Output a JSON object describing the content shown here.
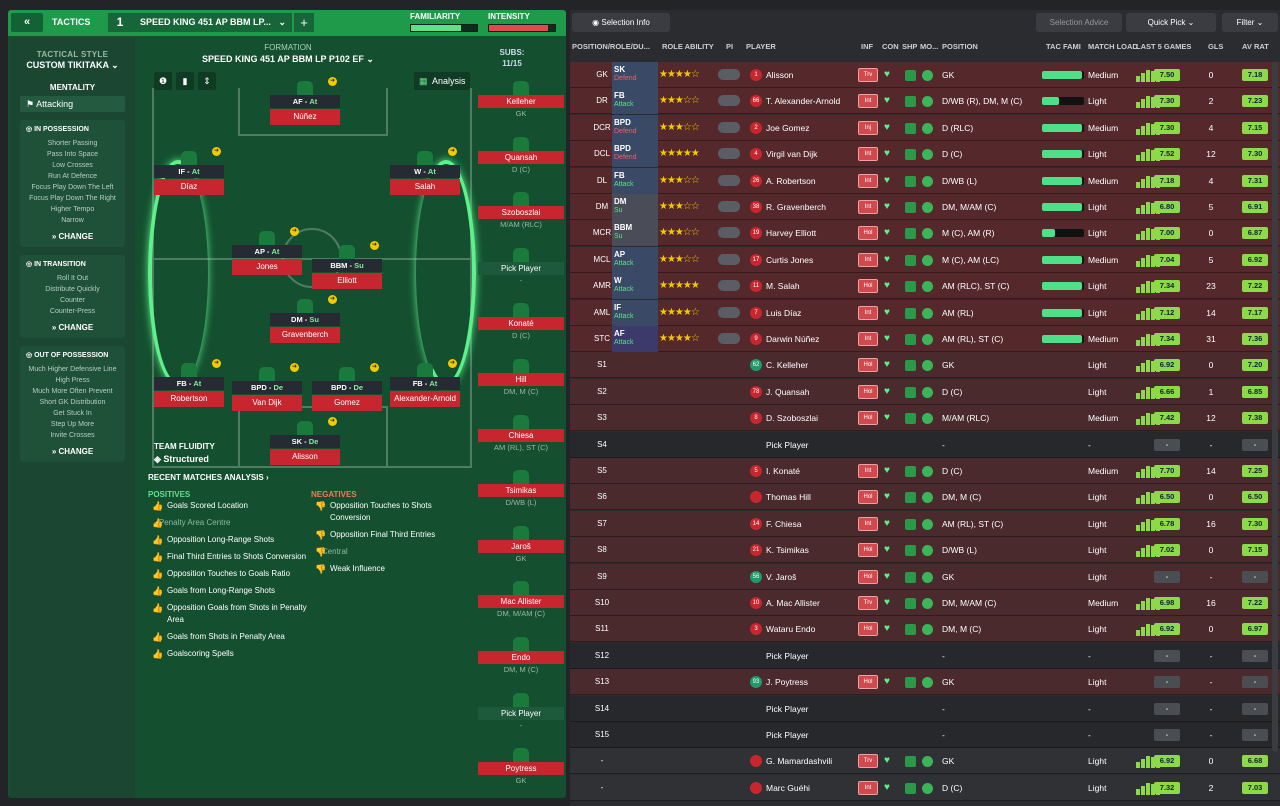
{
  "topbar": {
    "back": "«",
    "tactics": "TACTICS",
    "num": "1",
    "name": "SPEED KING 451 AP BBM LP...",
    "plus": "+",
    "familiarity": "FAMILIARITY",
    "intensity": "INTENSITY",
    "familiarity_level": 0.75,
    "intensity_level": 0.9
  },
  "sidebar": {
    "style_lbl": "TACTICAL STYLE",
    "style": "CUSTOM TIKITAKA",
    "mentality_lbl": "MENTALITY",
    "mentality": "Attacking",
    "in_possession": {
      "title": "IN POSSESSION",
      "items": [
        "Shorter Passing",
        "Pass Into Space",
        "Low Crosses",
        "Run At Defence",
        "Focus Play Down The Left",
        "Focus Play Down The Right",
        "Higher Tempo",
        "Narrow"
      ]
    },
    "in_transition": {
      "title": "IN TRANSITION",
      "items": [
        "Roll It Out",
        "Distribute Quickly",
        "Counter",
        "Counter-Press"
      ]
    },
    "out_possession": {
      "title": "OUT OF POSSESSION",
      "items": [
        "Much Higher Defensive Line",
        "High Press",
        "Much More Often Prevent Short GK Distribution",
        "Get Stuck In",
        "Step Up More",
        "Invite Crosses"
      ]
    },
    "change": "CHANGE"
  },
  "formation": {
    "label": "FORMATION",
    "name": "SPEED KING 451 AP BBM LP P102 EF",
    "subs_lbl": "SUBS:",
    "subs_count": "11/15",
    "analysis": "Analysis"
  },
  "players": [
    {
      "role": "AF",
      "duty": "At",
      "name": "Núñez"
    },
    {
      "role": "IF",
      "duty": "At",
      "name": "Díaz"
    },
    {
      "role": "W",
      "duty": "At",
      "name": "Salah"
    },
    {
      "role": "AP",
      "duty": "At",
      "name": "Jones"
    },
    {
      "role": "BBM",
      "duty": "Su",
      "name": "Elliott"
    },
    {
      "role": "DM",
      "duty": "Su",
      "name": "Gravenberch"
    },
    {
      "role": "FB",
      "duty": "At",
      "name": "Robertson"
    },
    {
      "role": "BPD",
      "duty": "De",
      "name": "Van Dijk"
    },
    {
      "role": "BPD",
      "duty": "De",
      "name": "Gomez"
    },
    {
      "role": "FB",
      "duty": "At",
      "name": "Alexander-Arnold"
    },
    {
      "role": "SK",
      "duty": "De",
      "name": "Alisson"
    }
  ],
  "fluidity": {
    "label": "TEAM FLUIDITY",
    "value": "Structured"
  },
  "analysis": {
    "title": "RECENT MATCHES ANALYSIS ›",
    "pos_title": "POSITIVES",
    "neg_title": "NEGATIVES",
    "positives": [
      "Goals Scored Location",
      "- Penalty Area Centre",
      "Opposition Long-Range Shots",
      "Final Third Entries to Shots Conversion",
      "Opposition Touches to Goals Ratio",
      "Goals from Long-Range Shots",
      "Opposition Goals from Shots in Penalty Area",
      "Goals from Shots in Penalty Area",
      "Goalscoring Spells"
    ],
    "negatives": [
      "Opposition Touches to Shots Conversion",
      "Opposition Final Third Entries",
      "- Central",
      "Weak Influence"
    ]
  },
  "subs": [
    {
      "name": "Kelleher",
      "pos": "GK"
    },
    {
      "name": "Quansah",
      "pos": "D (C)"
    },
    {
      "name": "Szoboszlai",
      "pos": "M/AM (RLC)"
    },
    {
      "name": "Pick Player",
      "pos": "-"
    },
    {
      "name": "Konaté",
      "pos": "D (C)"
    },
    {
      "name": "Hill",
      "pos": "DM, M (C)"
    },
    {
      "name": "Chiesa",
      "pos": "AM (RL), ST (C)"
    },
    {
      "name": "Tsimikas",
      "pos": "D/WB (L)"
    },
    {
      "name": "Jaroš",
      "pos": "GK"
    },
    {
      "name": "Mac Allister",
      "pos": "DM, M/AM (C)"
    },
    {
      "name": "Endo",
      "pos": "DM, M (C)"
    },
    {
      "name": "Pick Player",
      "pos": "-"
    },
    {
      "name": "Poytress",
      "pos": "GK"
    }
  ],
  "right": {
    "selection_info": "Selection Info",
    "selection_advice": "Selection Advice",
    "quick_pick": "Quick Pick",
    "filter": "Filter",
    "headers": [
      "POSITION/ROLE/DU...",
      "ROLE ABILITY",
      "PI",
      "PLAYER",
      "INF",
      "CON",
      "SHP",
      "MO...",
      "POSITION",
      "TAC FAMI",
      "MATCH LOAD",
      "LAST 5 GAMES",
      "GLS",
      "AV RAT"
    ],
    "rows": [
      {
        "pos": "GK",
        "role": "SK",
        "duty": "Defend",
        "stars": 4,
        "num": "1",
        "name": "Alisson",
        "inf": "Trv",
        "posn": "GK",
        "tac": 0.95,
        "load": "Medium",
        "avg": "7.50",
        "gls": "0",
        "rat": "7.18"
      },
      {
        "pos": "DR",
        "role": "FB",
        "duty": "Attack",
        "stars": 3,
        "num": "66",
        "name": "T. Alexander-Arnold",
        "inf": "Int",
        "posn": "D/WB (R), DM, M (C)",
        "tac": 0.4,
        "load": "Light",
        "avg": "7.30",
        "gls": "2",
        "rat": "7.23"
      },
      {
        "pos": "DCR",
        "role": "BPD",
        "duty": "Defend",
        "stars": 3,
        "num": "2",
        "name": "Joe Gomez",
        "inf": "Inj",
        "posn": "D (RLC)",
        "tac": 0.95,
        "load": "Medium",
        "avg": "7.30",
        "gls": "4",
        "rat": "7.15"
      },
      {
        "pos": "DCL",
        "role": "BPD",
        "duty": "Defend",
        "stars": 4.5,
        "num": "4",
        "name": "Virgil van Dijk",
        "inf": "Int",
        "posn": "D (C)",
        "tac": 0.95,
        "load": "Light",
        "avg": "7.52",
        "gls": "12",
        "rat": "7.30"
      },
      {
        "pos": "DL",
        "role": "FB",
        "duty": "Attack",
        "stars": 3,
        "num": "26",
        "name": "A. Robertson",
        "inf": "Int",
        "posn": "D/WB (L)",
        "tac": 0.95,
        "load": "Medium",
        "avg": "7.18",
        "gls": "4",
        "rat": "7.31"
      },
      {
        "pos": "DM",
        "role": "DM",
        "duty": "Su",
        "stars": 2.5,
        "num": "38",
        "name": "R. Gravenberch",
        "inf": "Int",
        "posn": "DM, M/AM (C)",
        "tac": 0.95,
        "load": "Light",
        "avg": "6.80",
        "gls": "5",
        "rat": "6.91"
      },
      {
        "pos": "MCR",
        "role": "BBM",
        "duty": "Su",
        "stars": 2.5,
        "num": "19",
        "name": "Harvey Elliott",
        "inf": "Hol",
        "posn": "M (C), AM (R)",
        "tac": 0.3,
        "load": "Light",
        "avg": "7.00",
        "gls": "0",
        "rat": "6.87"
      },
      {
        "pos": "MCL",
        "role": "AP",
        "duty": "Attack",
        "stars": 3,
        "num": "17",
        "name": "Curtis Jones",
        "inf": "Int",
        "posn": "M (C), AM (LC)",
        "tac": 0.95,
        "load": "Medium",
        "avg": "7.04",
        "gls": "5",
        "rat": "6.92"
      },
      {
        "pos": "AMR",
        "role": "W",
        "duty": "Attack",
        "stars": 4.5,
        "num": "11",
        "name": "M. Salah",
        "inf": "Hol",
        "posn": "AM (RLC), ST (C)",
        "tac": 0.95,
        "load": "Light",
        "avg": "7.34",
        "gls": "23",
        "rat": "7.22"
      },
      {
        "pos": "AML",
        "role": "IF",
        "duty": "Attack",
        "stars": 4,
        "num": "7",
        "name": "Luis Díaz",
        "inf": "Int",
        "posn": "AM (RL)",
        "tac": 0.95,
        "load": "Light",
        "avg": "7.12",
        "gls": "14",
        "rat": "7.17"
      },
      {
        "pos": "STC",
        "role": "AF",
        "duty": "Attack",
        "stars": 3.5,
        "num": "9",
        "name": "Darwin Núñez",
        "inf": "Int",
        "posn": "AM (RL), ST (C)",
        "tac": 0.95,
        "load": "Medium",
        "avg": "7.34",
        "gls": "31",
        "rat": "7.36"
      },
      {
        "pos": "S1",
        "num": "62",
        "name": "C. Kelleher",
        "inf": "Hol",
        "posn": "GK",
        "load": "Light",
        "avg": "6.92",
        "gls": "0",
        "rat": "7.20"
      },
      {
        "pos": "S2",
        "num": "78",
        "name": "J. Quansah",
        "inf": "Hol",
        "posn": "D (C)",
        "load": "Light",
        "avg": "6.66",
        "gls": "1",
        "rat": "6.85"
      },
      {
        "pos": "S3",
        "num": "8",
        "name": "D. Szoboszlai",
        "inf": "Hol",
        "posn": "M/AM (RLC)",
        "load": "Medium",
        "avg": "7.42",
        "gls": "12",
        "rat": "7.38"
      },
      {
        "pos": "S4",
        "name": "Pick Player",
        "empty": true,
        "posn": "-",
        "load": "-",
        "avg": "-",
        "gls": "-",
        "rat": "-"
      },
      {
        "pos": "S5",
        "num": "5",
        "name": "I. Konaté",
        "inf": "Int",
        "posn": "D (C)",
        "load": "Medium",
        "avg": "7.70",
        "gls": "14",
        "rat": "7.25"
      },
      {
        "pos": "S6",
        "num": "",
        "name": "Thomas Hill",
        "inf": "Hol",
        "posn": "DM, M (C)",
        "load": "Light",
        "avg": "6.50",
        "gls": "0",
        "rat": "6.50"
      },
      {
        "pos": "S7",
        "num": "14",
        "name": "F. Chiesa",
        "inf": "Int",
        "posn": "AM (RL), ST (C)",
        "load": "Light",
        "avg": "6.78",
        "gls": "16",
        "rat": "7.30"
      },
      {
        "pos": "S8",
        "num": "21",
        "name": "K. Tsimikas",
        "inf": "Hol",
        "posn": "D/WB (L)",
        "load": "Light",
        "avg": "7.02",
        "gls": "0",
        "rat": "7.15"
      },
      {
        "pos": "S9",
        "num": "56",
        "name": "V. Jaroš",
        "inf": "Hol",
        "posn": "GK",
        "load": "Light",
        "avg": "-",
        "gls": "-",
        "rat": "-"
      },
      {
        "pos": "S10",
        "num": "10",
        "name": "A. Mac Allister",
        "inf": "Trv",
        "posn": "DM, M/AM (C)",
        "load": "Medium",
        "avg": "6.98",
        "gls": "16",
        "rat": "7.22"
      },
      {
        "pos": "S11",
        "num": "3",
        "name": "Wataru Endo",
        "inf": "Hol",
        "posn": "DM, M (C)",
        "load": "Light",
        "avg": "6.92",
        "gls": "0",
        "rat": "6.97"
      },
      {
        "pos": "S12",
        "name": "Pick Player",
        "empty": true,
        "posn": "-",
        "load": "-",
        "avg": "-",
        "gls": "-",
        "rat": "-"
      },
      {
        "pos": "S13",
        "num": "93",
        "name": "J. Poytress",
        "inf": "Hol",
        "posn": "GK",
        "load": "Light",
        "avg": "-",
        "gls": "-",
        "rat": "-"
      },
      {
        "pos": "S14",
        "name": "Pick Player",
        "empty": true,
        "posn": "-",
        "load": "-",
        "avg": "-",
        "gls": "-",
        "rat": "-"
      },
      {
        "pos": "S15",
        "name": "Pick Player",
        "empty": true,
        "posn": "-",
        "load": "-",
        "avg": "-",
        "gls": "-",
        "rat": "-"
      },
      {
        "pos": "-",
        "num": "",
        "name": "G. Mamardashvili",
        "inf": "Trv",
        "posn": "GK",
        "load": "Light",
        "avg": "6.92",
        "gls": "0",
        "rat": "6.68"
      },
      {
        "pos": "-",
        "num": "",
        "name": "Marc Guéhi",
        "inf": "Int",
        "posn": "D (C)",
        "load": "Light",
        "avg": "7.32",
        "gls": "2",
        "rat": "7.03"
      }
    ]
  }
}
